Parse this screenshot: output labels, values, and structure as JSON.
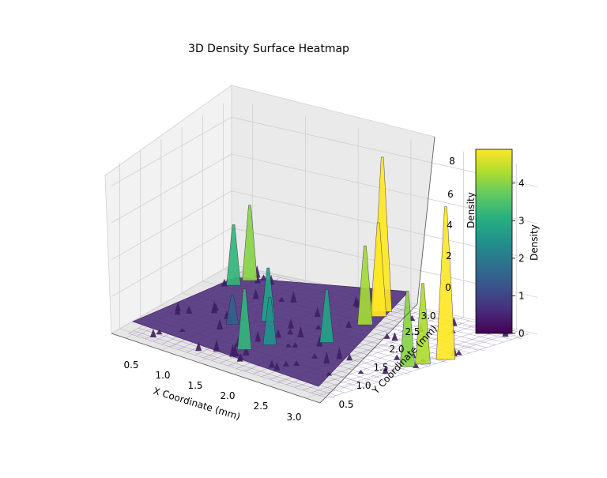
{
  "chart_data": {
    "type": "3d-surface",
    "title": "3D Density Surface Heatmap",
    "xlabel": "X Coordinate (mm)",
    "ylabel": "Y Coordinate (mm)",
    "zlabel": "Density",
    "x_ticks": [
      "0.5",
      "1.0",
      "1.5",
      "2.0",
      "2.5",
      "3.0"
    ],
    "y_ticks": [
      "0.5",
      "1.0",
      "1.5",
      "2.0",
      "2.5",
      "3.0"
    ],
    "z_ticks": [
      "0",
      "2",
      "4",
      "6",
      "8"
    ],
    "xlim": [
      0.3,
      3.2
    ],
    "ylim": [
      0.3,
      3.2
    ],
    "zlim": [
      0,
      9
    ],
    "baseline_density": 0,
    "peaks": [
      {
        "x": 1.9,
        "y": 2.9,
        "density": 8.3
      },
      {
        "x": 1.95,
        "y": 2.75,
        "density": 5.0
      },
      {
        "x": 2.0,
        "y": 2.45,
        "density": 4.2
      },
      {
        "x": 0.6,
        "y": 2.9,
        "density": 4.0
      },
      {
        "x": 0.55,
        "y": 2.65,
        "density": 3.2
      },
      {
        "x": 3.1,
        "y": 2.1,
        "density": 8.2
      },
      {
        "x": 3.05,
        "y": 1.85,
        "density": 4.3
      },
      {
        "x": 3.0,
        "y": 1.7,
        "density": 4.0
      },
      {
        "x": 1.6,
        "y": 1.0,
        "density": 3.2
      },
      {
        "x": 1.3,
        "y": 1.9,
        "density": 2.8
      },
      {
        "x": 2.05,
        "y": 1.75,
        "density": 2.8
      },
      {
        "x": 1.7,
        "y": 1.3,
        "density": 2.5
      },
      {
        "x": 1.1,
        "y": 1.55,
        "density": 1.5
      }
    ],
    "colorbar": {
      "label": "Density",
      "ticks": [
        "0",
        "1",
        "2",
        "3",
        "4"
      ],
      "range": [
        0,
        4.9
      ],
      "colormap": "viridis"
    }
  }
}
